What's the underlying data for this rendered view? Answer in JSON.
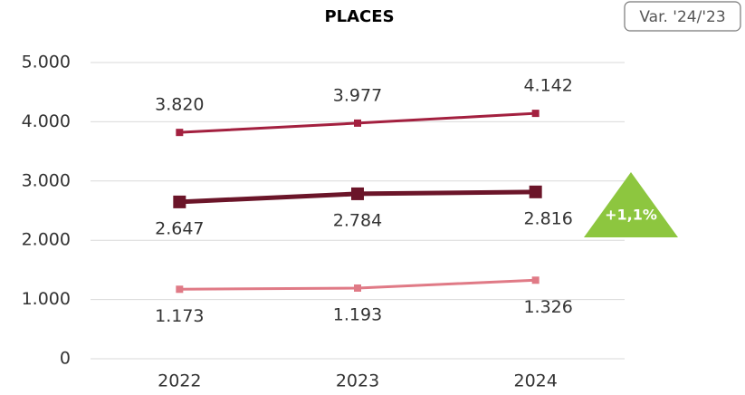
{
  "chart_data": {
    "type": "line",
    "title": "PLACES",
    "categories": [
      "2022",
      "2023",
      "2024"
    ],
    "series": [
      {
        "color": "#a3203f",
        "values": [
          3820,
          3977,
          4142
        ],
        "value_labels": [
          "3.820",
          "3.977",
          "4.142"
        ],
        "label_position": "above"
      },
      {
        "color": "#6b1529",
        "values": [
          2647,
          2784,
          2816
        ],
        "value_labels": [
          "2.647",
          "2.784",
          "2.816"
        ],
        "label_position": "below"
      },
      {
        "color": "#e07a86",
        "values": [
          1173,
          1193,
          1326
        ],
        "value_labels": [
          "1.173",
          "1.193",
          "1.326"
        ],
        "label_position": "below"
      }
    ],
    "ylim": [
      0,
      5000
    ],
    "yticks": [
      0,
      {
        "value": 1000,
        "label": "1.000"
      },
      {
        "value": 2000,
        "label": "2.000"
      },
      {
        "value": 3000,
        "label": "3.000"
      },
      {
        "value": 4000,
        "label": "4.000"
      },
      {
        "value": 5000,
        "label": "5.000"
      }
    ],
    "grid": true,
    "variation_label": "Var. '24/'23",
    "variation": "+1,1%",
    "variation_color": "#8dc63f"
  }
}
